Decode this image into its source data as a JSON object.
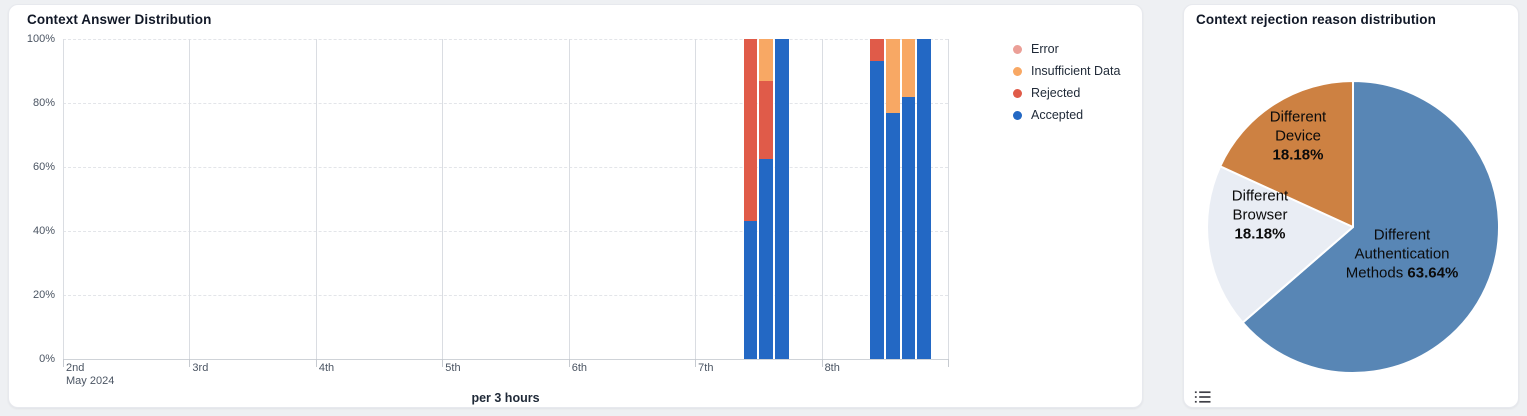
{
  "page_bg": "#eef0f3",
  "left_panel": {
    "title": "Context Answer Distribution",
    "xlabel": "per 3 hours",
    "legend": [
      {
        "label": "Error",
        "color": "#eb9f97"
      },
      {
        "label": "Insufficient Data",
        "color": "#f8a864"
      },
      {
        "label": "Rejected",
        "color": "#e05b49"
      },
      {
        "label": "Accepted",
        "color": "#2368c4"
      }
    ]
  },
  "right_panel": {
    "title": "Context rejection reason distribution"
  },
  "chart_data": [
    {
      "type": "bar",
      "stacked": true,
      "percent": true,
      "title": "Context Answer Distribution",
      "xlabel": "per 3 hours",
      "ylabel": "",
      "ylim": [
        0,
        100
      ],
      "grid": true,
      "legend_position": "right",
      "y_tick_values": [
        0,
        20,
        40,
        60,
        80,
        100
      ],
      "y_tick_labels": [
        "0%",
        "20%",
        "40%",
        "60%",
        "80%",
        "100%"
      ],
      "x_day_labels": [
        "2nd",
        "3rd",
        "4th",
        "5th",
        "6th",
        "7th",
        "8th"
      ],
      "x_first_label_sub": "May 2024",
      "series_legend": [
        "Error",
        "Insufficient Data",
        "Rejected",
        "Accepted"
      ],
      "bars": [
        {
          "day": "7th",
          "time": "09:00",
          "segments": [
            {
              "series": "Accepted",
              "pct": 43
            },
            {
              "series": "Rejected",
              "pct": 57
            }
          ]
        },
        {
          "day": "7th",
          "time": "12:00",
          "segments": [
            {
              "series": "Accepted",
              "pct": 62.5
            },
            {
              "series": "Rejected",
              "pct": 24.5
            },
            {
              "series": "Insufficient Data",
              "pct": 13
            }
          ]
        },
        {
          "day": "7th",
          "time": "15:00",
          "segments": [
            {
              "series": "Accepted",
              "pct": 100
            }
          ]
        },
        {
          "day": "8th",
          "time": "09:00",
          "segments": [
            {
              "series": "Accepted",
              "pct": 93
            },
            {
              "series": "Rejected",
              "pct": 7
            }
          ]
        },
        {
          "day": "8th",
          "time": "12:00",
          "segments": [
            {
              "series": "Accepted",
              "pct": 77
            },
            {
              "series": "Insufficient Data",
              "pct": 23
            }
          ]
        },
        {
          "day": "8th",
          "time": "15:00",
          "segments": [
            {
              "series": "Accepted",
              "pct": 82
            },
            {
              "series": "Insufficient Data",
              "pct": 18
            }
          ]
        },
        {
          "day": "8th",
          "time": "18:00",
          "segments": [
            {
              "series": "Accepted",
              "pct": 100
            }
          ]
        }
      ]
    },
    {
      "type": "pie",
      "title": "Context rejection reason distribution",
      "slices": [
        {
          "label": "Different Authentication Methods",
          "value": 63.64,
          "color": "#5886b5",
          "label_lines": [
            "Different",
            "Authentication"
          ],
          "pct_prefix": "Methods ",
          "pct_text": "63.64%"
        },
        {
          "label": "Different Browser",
          "value": 18.18,
          "color": "#e9edf4",
          "label_lines": [
            "Different",
            "Browser"
          ],
          "pct_prefix": "",
          "pct_text": "18.18%"
        },
        {
          "label": "Different Device",
          "value": 18.18,
          "color": "#cd8142",
          "label_lines": [
            "Different",
            "Device"
          ],
          "pct_prefix": "",
          "pct_text": "18.18%"
        }
      ]
    }
  ]
}
